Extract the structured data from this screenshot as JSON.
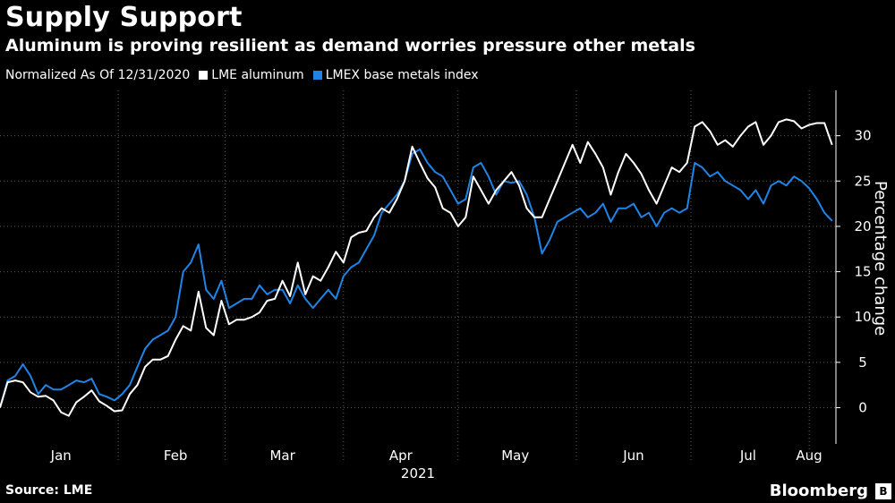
{
  "header": {
    "title": "Supply Support",
    "subtitle": "Aluminum is proving resilient as demand worries pressure other metals"
  },
  "legend": {
    "note": "Normalized As Of 12/31/2020",
    "items": [
      {
        "label": "LME aluminum",
        "color": "#ffffff"
      },
      {
        "label": "LMEX base metals index",
        "color": "#1f84e6"
      }
    ]
  },
  "footer": {
    "source": "Source: LME",
    "brand": "Bloomberg"
  },
  "chart_data": {
    "type": "line",
    "title": "Supply Support",
    "subtitle": "Aluminum is proving resilient as demand worries pressure other metals",
    "ylabel": "Percentage change",
    "xlabel": "2021",
    "ylim": [
      -4,
      35
    ],
    "yticks": [
      0,
      5,
      10,
      15,
      20,
      25,
      30
    ],
    "xlim": [
      0,
      219
    ],
    "xticks": [
      {
        "label": "Jan",
        "x": 16
      },
      {
        "label": "Feb",
        "x": 46
      },
      {
        "label": "Mar",
        "x": 74
      },
      {
        "label": "Apr",
        "x": 105
      },
      {
        "label": "May",
        "x": 135
      },
      {
        "label": "Jun",
        "x": 166
      },
      {
        "label": "Jul",
        "x": 196
      },
      {
        "label": "Aug",
        "x": 227
      }
    ],
    "year_label": "2021",
    "grid": true,
    "legend_position": "top-left",
    "series": [
      {
        "name": "LME aluminum",
        "color": "#ffffff",
        "points": [
          [
            0,
            0
          ],
          [
            2,
            2.8
          ],
          [
            4,
            3
          ],
          [
            6,
            2.8
          ],
          [
            8,
            1.7
          ],
          [
            10,
            1.2
          ],
          [
            12,
            1.3
          ],
          [
            14,
            0.8
          ],
          [
            16,
            -0.5
          ],
          [
            18,
            -0.9
          ],
          [
            20,
            0.6
          ],
          [
            22,
            1.2
          ],
          [
            24,
            1.9
          ],
          [
            26,
            0.7
          ],
          [
            28,
            0.2
          ],
          [
            30,
            -0.4
          ],
          [
            32,
            -0.3
          ],
          [
            34,
            1.5
          ],
          [
            36,
            2.5
          ],
          [
            38,
            4.5
          ],
          [
            40,
            5.3
          ],
          [
            42,
            5.3
          ],
          [
            44,
            5.7
          ],
          [
            46,
            7.5
          ],
          [
            48,
            9
          ],
          [
            50,
            8.5
          ],
          [
            52,
            12.8
          ],
          [
            54,
            8.8
          ],
          [
            56,
            8
          ],
          [
            58,
            11.8
          ],
          [
            60,
            9.2
          ],
          [
            62,
            9.7
          ],
          [
            64,
            9.7
          ],
          [
            66,
            10
          ],
          [
            68,
            10.5
          ],
          [
            70,
            11.8
          ],
          [
            72,
            12
          ],
          [
            74,
            14
          ],
          [
            76,
            12.3
          ],
          [
            78,
            16
          ],
          [
            80,
            12.5
          ],
          [
            82,
            14.5
          ],
          [
            84,
            14
          ],
          [
            86,
            15.5
          ],
          [
            88,
            17.2
          ],
          [
            90,
            16
          ],
          [
            92,
            18.8
          ],
          [
            94,
            19.3
          ],
          [
            96,
            19.5
          ],
          [
            98,
            21
          ],
          [
            100,
            22
          ],
          [
            102,
            21.5
          ],
          [
            104,
            23
          ],
          [
            106,
            25
          ],
          [
            108,
            28.8
          ],
          [
            110,
            27
          ],
          [
            112,
            25.3
          ],
          [
            114,
            24.3
          ],
          [
            116,
            22
          ],
          [
            118,
            21.5
          ],
          [
            120,
            20
          ],
          [
            122,
            21
          ],
          [
            124,
            25.5
          ],
          [
            126,
            24
          ],
          [
            128,
            22.5
          ],
          [
            130,
            24
          ],
          [
            132,
            25
          ],
          [
            134,
            26
          ],
          [
            136,
            24.5
          ],
          [
            138,
            22
          ],
          [
            140,
            21
          ],
          [
            142,
            21
          ],
          [
            144,
            23
          ],
          [
            146,
            25
          ],
          [
            148,
            27
          ],
          [
            150,
            29
          ],
          [
            152,
            27
          ],
          [
            154,
            29.3
          ],
          [
            156,
            28
          ],
          [
            158,
            26.5
          ],
          [
            160,
            23.5
          ],
          [
            162,
            26
          ],
          [
            164,
            28
          ],
          [
            166,
            27
          ],
          [
            168,
            25.8
          ],
          [
            170,
            24
          ],
          [
            172,
            22.5
          ],
          [
            174,
            24.5
          ],
          [
            176,
            26.5
          ],
          [
            178,
            26
          ],
          [
            180,
            27
          ],
          [
            182,
            31
          ],
          [
            184,
            31.5
          ],
          [
            186,
            30.5
          ],
          [
            188,
            29
          ],
          [
            190,
            29.5
          ],
          [
            192,
            28.8
          ],
          [
            194,
            30
          ],
          [
            196,
            31
          ],
          [
            198,
            31.5
          ],
          [
            200,
            29
          ],
          [
            202,
            30
          ],
          [
            204,
            31.5
          ],
          [
            206,
            31.8
          ],
          [
            208,
            31.6
          ],
          [
            210,
            30.8
          ],
          [
            212,
            31.2
          ],
          [
            214,
            31.4
          ],
          [
            216,
            31.4
          ],
          [
            218,
            29
          ]
        ]
      },
      {
        "name": "LMEX base metals index",
        "color": "#1f84e6",
        "points": [
          [
            0,
            0
          ],
          [
            2,
            3
          ],
          [
            4,
            3.5
          ],
          [
            6,
            4.8
          ],
          [
            8,
            3.5
          ],
          [
            10,
            1.5
          ],
          [
            12,
            2.5
          ],
          [
            14,
            2
          ],
          [
            16,
            2
          ],
          [
            18,
            2.5
          ],
          [
            20,
            3
          ],
          [
            22,
            2.8
          ],
          [
            24,
            3.2
          ],
          [
            26,
            1.5
          ],
          [
            28,
            1.2
          ],
          [
            30,
            0.8
          ],
          [
            32,
            1.5
          ],
          [
            34,
            2.5
          ],
          [
            36,
            4.5
          ],
          [
            38,
            6.5
          ],
          [
            40,
            7.5
          ],
          [
            42,
            8
          ],
          [
            44,
            8.5
          ],
          [
            46,
            10
          ],
          [
            48,
            15
          ],
          [
            50,
            16
          ],
          [
            52,
            18
          ],
          [
            54,
            13
          ],
          [
            56,
            12
          ],
          [
            58,
            14
          ],
          [
            60,
            11
          ],
          [
            62,
            11.5
          ],
          [
            64,
            12
          ],
          [
            66,
            12
          ],
          [
            68,
            13.5
          ],
          [
            70,
            12.5
          ],
          [
            72,
            13
          ],
          [
            74,
            13
          ],
          [
            76,
            11.5
          ],
          [
            78,
            13.5
          ],
          [
            80,
            12
          ],
          [
            82,
            11
          ],
          [
            84,
            12
          ],
          [
            86,
            13
          ],
          [
            88,
            12
          ],
          [
            90,
            14.5
          ],
          [
            92,
            15.5
          ],
          [
            94,
            16
          ],
          [
            96,
            17.5
          ],
          [
            98,
            19
          ],
          [
            100,
            21.5
          ],
          [
            102,
            22.5
          ],
          [
            104,
            23.5
          ],
          [
            106,
            25
          ],
          [
            108,
            28
          ],
          [
            110,
            28.5
          ],
          [
            112,
            27
          ],
          [
            114,
            26
          ],
          [
            116,
            25.5
          ],
          [
            118,
            24
          ],
          [
            120,
            22.5
          ],
          [
            122,
            23
          ],
          [
            124,
            26.5
          ],
          [
            126,
            27
          ],
          [
            128,
            25.5
          ],
          [
            130,
            23.5
          ],
          [
            132,
            25
          ],
          [
            134,
            24.8
          ],
          [
            136,
            25
          ],
          [
            138,
            23.5
          ],
          [
            140,
            21
          ],
          [
            142,
            17
          ],
          [
            144,
            18.5
          ],
          [
            146,
            20.5
          ],
          [
            148,
            21
          ],
          [
            150,
            21.5
          ],
          [
            152,
            22
          ],
          [
            154,
            21
          ],
          [
            156,
            21.5
          ],
          [
            158,
            22.5
          ],
          [
            160,
            20.5
          ],
          [
            162,
            22
          ],
          [
            164,
            22
          ],
          [
            166,
            22.5
          ],
          [
            168,
            21
          ],
          [
            170,
            21.5
          ],
          [
            172,
            20
          ],
          [
            174,
            21.5
          ],
          [
            176,
            22
          ],
          [
            178,
            21.5
          ],
          [
            180,
            22
          ],
          [
            182,
            27
          ],
          [
            184,
            26.5
          ],
          [
            186,
            25.5
          ],
          [
            188,
            26
          ],
          [
            190,
            25
          ],
          [
            192,
            24.5
          ],
          [
            194,
            24
          ],
          [
            196,
            23
          ],
          [
            198,
            24
          ],
          [
            200,
            22.5
          ],
          [
            202,
            24.5
          ],
          [
            204,
            25
          ],
          [
            206,
            24.5
          ],
          [
            208,
            25.5
          ],
          [
            210,
            25
          ],
          [
            212,
            24.2
          ],
          [
            214,
            23
          ],
          [
            216,
            21.5
          ],
          [
            218,
            20.6
          ]
        ]
      }
    ]
  }
}
